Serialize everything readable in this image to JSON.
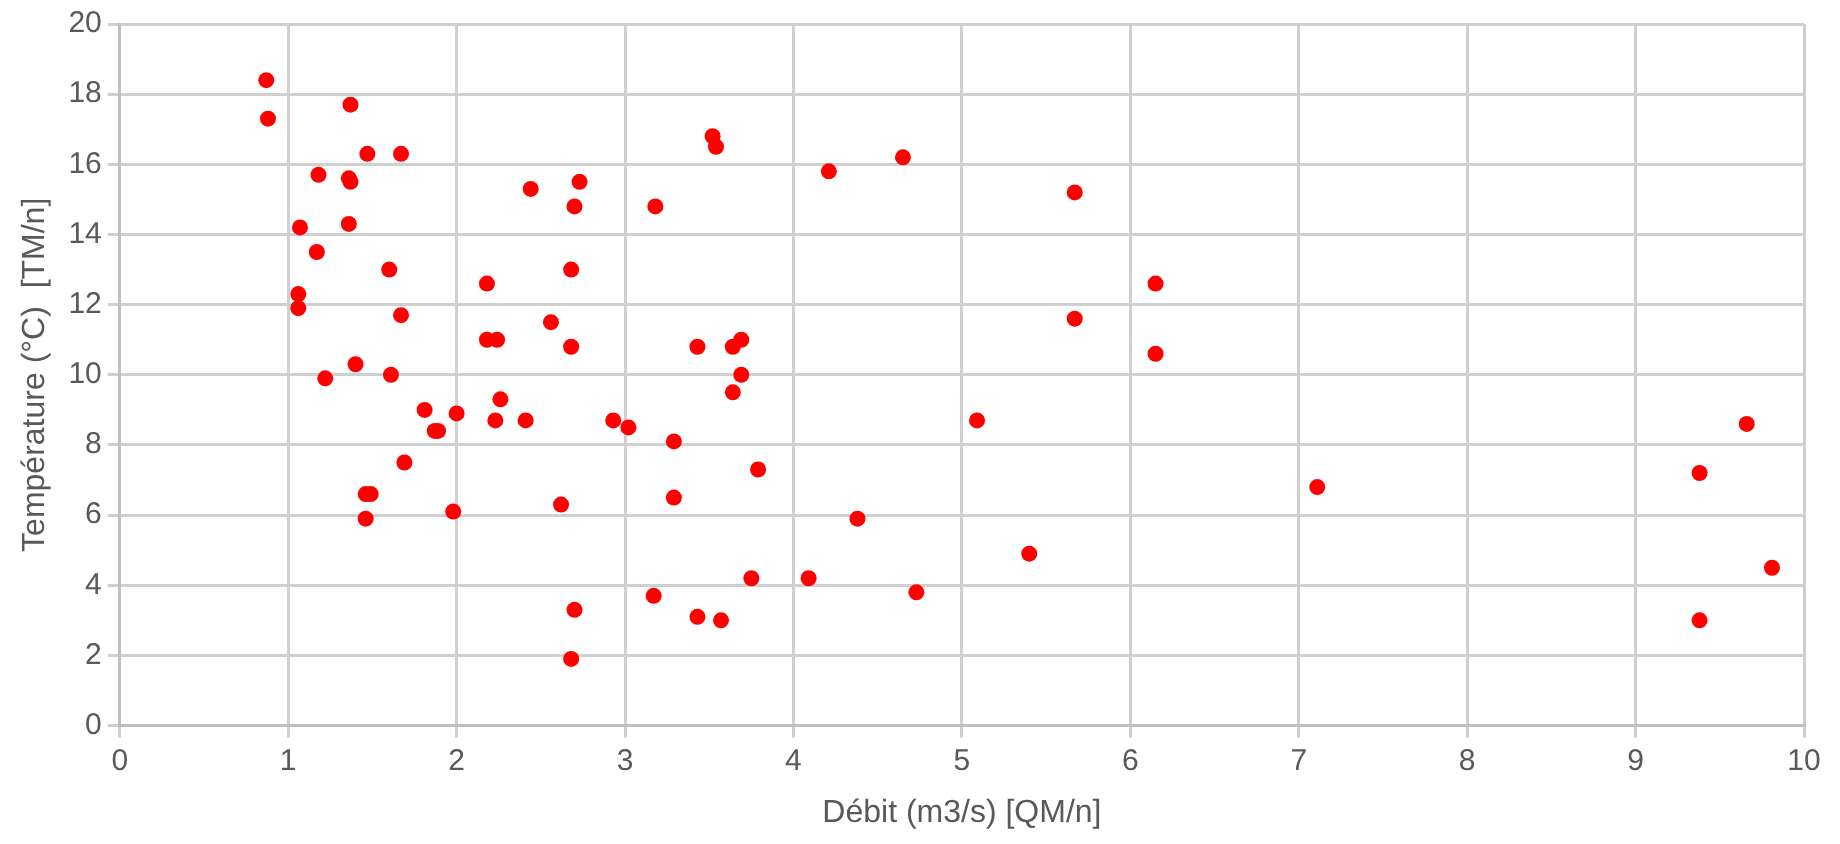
{
  "chart_data": {
    "type": "scatter",
    "xlabel": "Débit (m3/s) [QM/n]",
    "ylabel": "Température (°C)  [TM/n]",
    "xlim": [
      0,
      10
    ],
    "xticks": [
      0,
      1,
      2,
      3,
      4,
      5,
      6,
      7,
      8,
      9,
      10
    ],
    "ylim": [
      0,
      20
    ],
    "yticks": [
      0,
      2,
      4,
      6,
      8,
      10,
      12,
      14,
      16,
      18,
      20
    ],
    "grid": true,
    "marker": "circle",
    "series": [
      {
        "color": "#ff0000",
        "x": [
          0.87,
          0.88,
          1.37,
          1.18,
          1.47,
          1.36,
          1.37,
          1.67,
          1.07,
          1.17,
          1.36,
          1.06,
          1.06,
          1.6,
          1.67,
          1.22,
          1.4,
          1.61,
          1.81,
          1.87,
          1.89,
          2.0,
          1.69,
          1.46,
          1.49,
          1.46,
          1.98,
          2.18,
          2.18,
          2.24,
          2.26,
          2.23,
          2.44,
          2.73,
          2.7,
          2.68,
          2.56,
          2.68,
          2.41,
          2.93,
          3.02,
          3.29,
          3.79,
          2.62,
          3.29,
          2.7,
          2.68,
          3.17,
          3.43,
          3.57,
          3.75,
          4.09,
          3.52,
          3.54,
          4.21,
          3.18,
          3.43,
          3.64,
          3.69,
          3.69,
          3.64,
          4.65,
          5.67,
          6.15,
          5.67,
          6.15,
          5.09,
          4.38,
          4.73,
          5.4,
          7.11,
          9.38,
          9.66,
          9.81,
          9.38
        ],
        "values": [
          18.4,
          17.3,
          17.7,
          15.7,
          16.3,
          15.6,
          15.5,
          16.3,
          14.2,
          13.5,
          14.3,
          12.3,
          11.9,
          13.0,
          11.7,
          9.9,
          10.3,
          10.0,
          9.0,
          8.4,
          8.4,
          8.9,
          7.5,
          6.6,
          6.6,
          5.9,
          6.1,
          12.6,
          11.0,
          11.0,
          9.3,
          8.7,
          15.3,
          15.5,
          14.8,
          13.0,
          11.5,
          10.8,
          8.7,
          8.7,
          8.5,
          8.1,
          7.3,
          6.3,
          6.5,
          3.3,
          1.9,
          3.7,
          3.1,
          3.0,
          4.2,
          4.2,
          16.8,
          16.5,
          15.8,
          14.8,
          10.8,
          10.8,
          11.0,
          10.0,
          9.5,
          16.2,
          15.2,
          12.6,
          11.6,
          10.6,
          8.7,
          5.9,
          3.8,
          4.9,
          6.8,
          7.2,
          8.6,
          4.5,
          3.0
        ]
      }
    ]
  }
}
